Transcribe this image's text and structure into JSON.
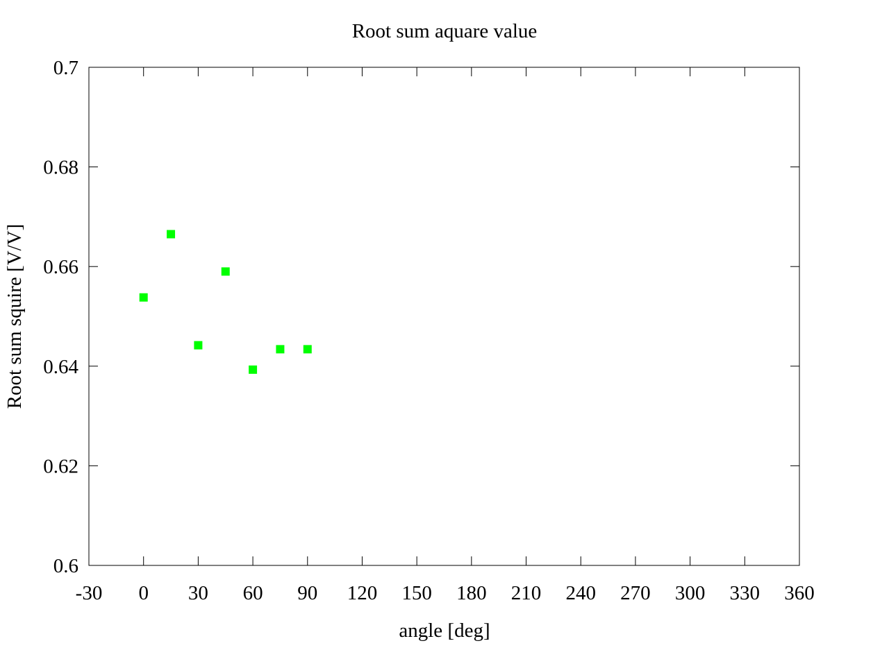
{
  "chart_data": {
    "type": "scatter",
    "title": "Root sum aquare value",
    "xlabel": "angle [deg]",
    "ylabel": "Root sum squire [V/V]",
    "xlim": [
      -30,
      360
    ],
    "ylim": [
      0.6,
      0.7
    ],
    "xticks": [
      "-30",
      "0",
      "30",
      "60",
      "90",
      "120",
      "150",
      "180",
      "210",
      "240",
      "270",
      "300",
      "330",
      "360"
    ],
    "yticks": [
      "0.6",
      "0.62",
      "0.64",
      "0.66",
      "0.68",
      "0.7"
    ],
    "grid": false,
    "series": [
      {
        "marker": "square",
        "color": "#00ff00",
        "points": [
          {
            "x": 0,
            "y": 0.6538
          },
          {
            "x": 15,
            "y": 0.6665
          },
          {
            "x": 30,
            "y": 0.6442
          },
          {
            "x": 45,
            "y": 0.659
          },
          {
            "x": 60,
            "y": 0.6393
          },
          {
            "x": 75,
            "y": 0.6434
          },
          {
            "x": 90,
            "y": 0.6434
          }
        ]
      }
    ]
  }
}
